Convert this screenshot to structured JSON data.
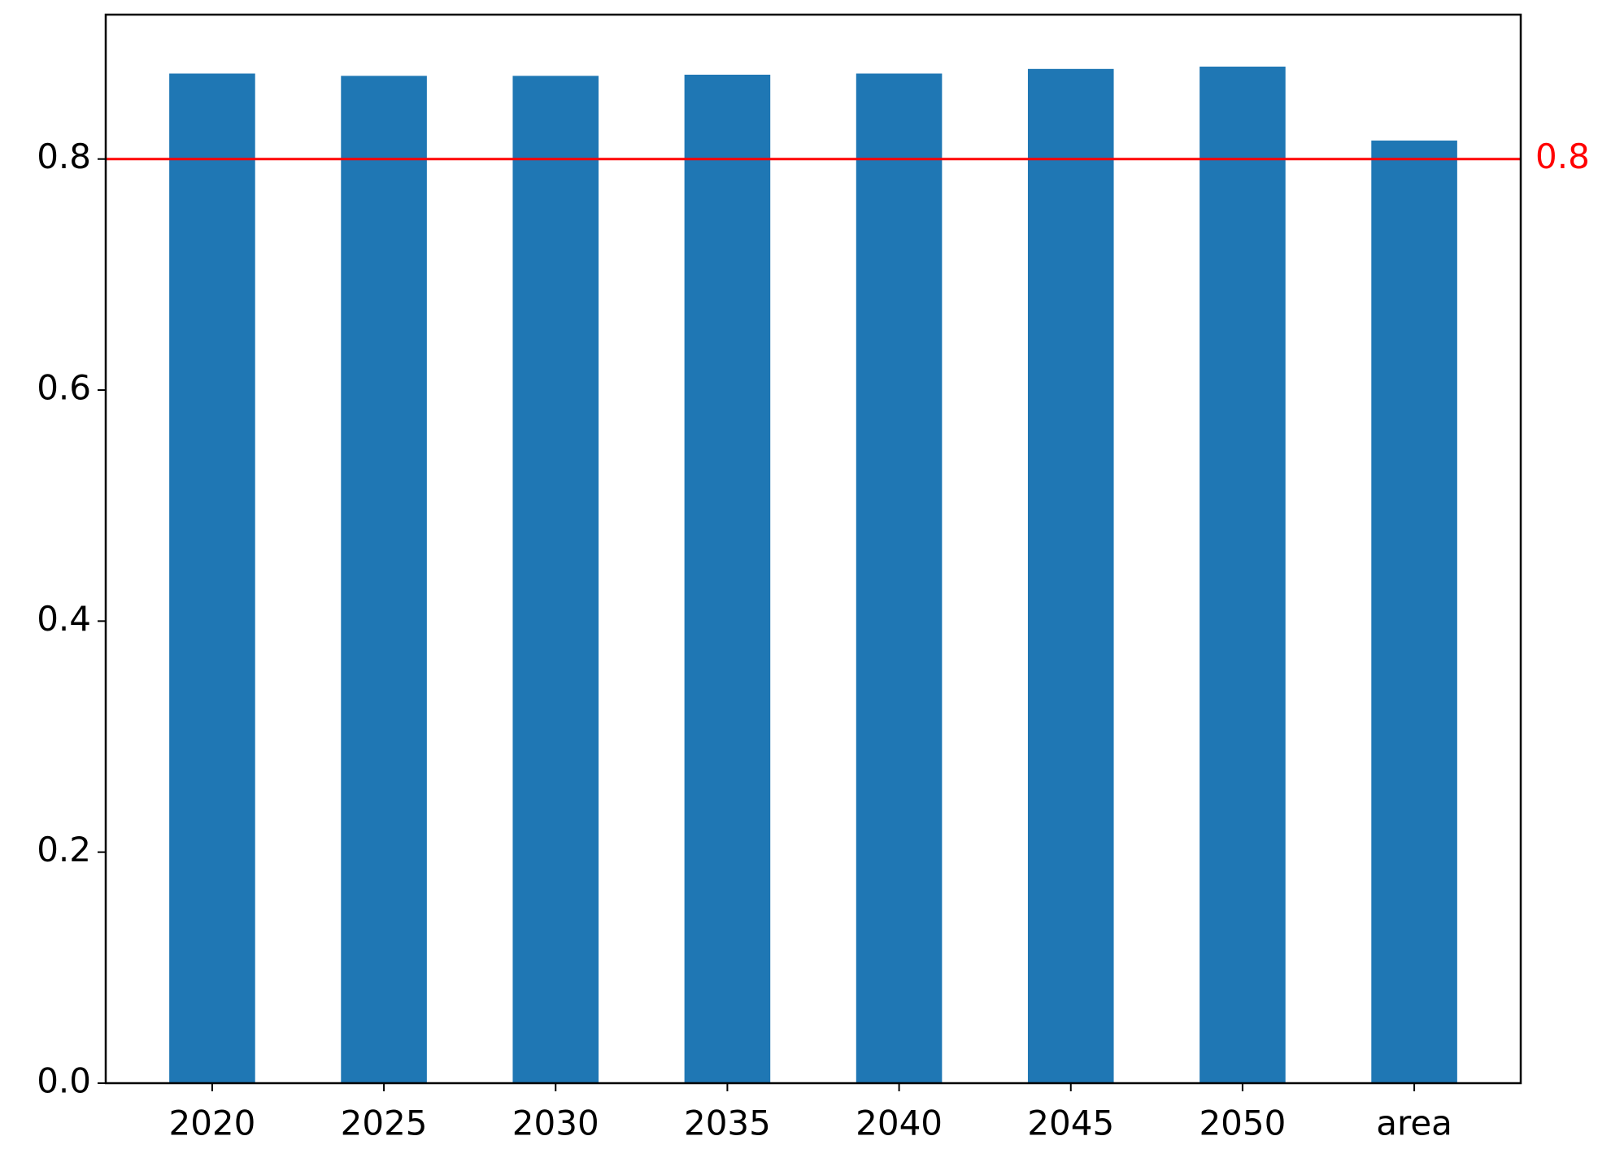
{
  "chart_data": {
    "type": "bar",
    "categories": [
      "2020",
      "2025",
      "2030",
      "2035",
      "2040",
      "2045",
      "2050",
      "area"
    ],
    "values": [
      0.874,
      0.872,
      0.872,
      0.873,
      0.874,
      0.878,
      0.88,
      0.816
    ],
    "color": "#1f77b4",
    "ylim": [
      0,
      0.925
    ],
    "yticks": [
      {
        "value": 0,
        "label": "0.0"
      },
      0.2,
      0.4,
      0.6,
      0.8
    ],
    "grid": false,
    "reference_line": {
      "value": 0.8,
      "color": "#ff0000"
    }
  }
}
